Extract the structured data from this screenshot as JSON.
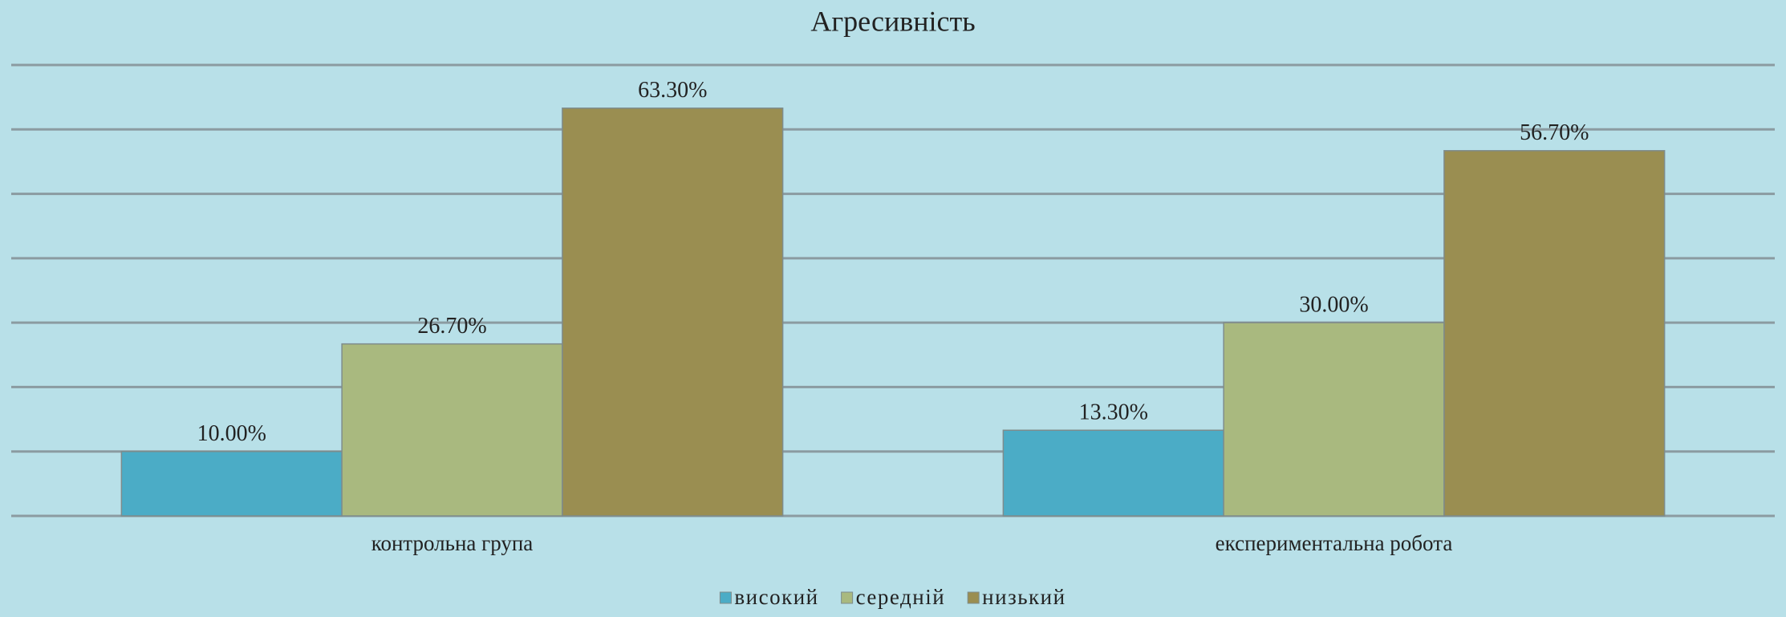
{
  "chart_data": {
    "type": "bar",
    "title": "Агресивність",
    "categories": [
      "контрольна група",
      "експериментальна робота"
    ],
    "series": [
      {
        "name": "високий",
        "color": "#4bacc6",
        "values": [
          10.0,
          13.3
        ],
        "value_labels": [
          "10.00%",
          "13.30%"
        ]
      },
      {
        "name": "середній",
        "color": "#a9b97f",
        "values": [
          26.7,
          30.0
        ],
        "value_labels": [
          "26.70%",
          "30.00%"
        ]
      },
      {
        "name": "низький",
        "color": "#9a8e51",
        "values": [
          63.3,
          56.7
        ],
        "value_labels": [
          "63.30%",
          "56.70%"
        ]
      }
    ],
    "ylim": [
      0,
      70
    ],
    "yticks": [
      0,
      10,
      20,
      30,
      40,
      50,
      60,
      70
    ],
    "grid": true,
    "legend": "bottom"
  }
}
